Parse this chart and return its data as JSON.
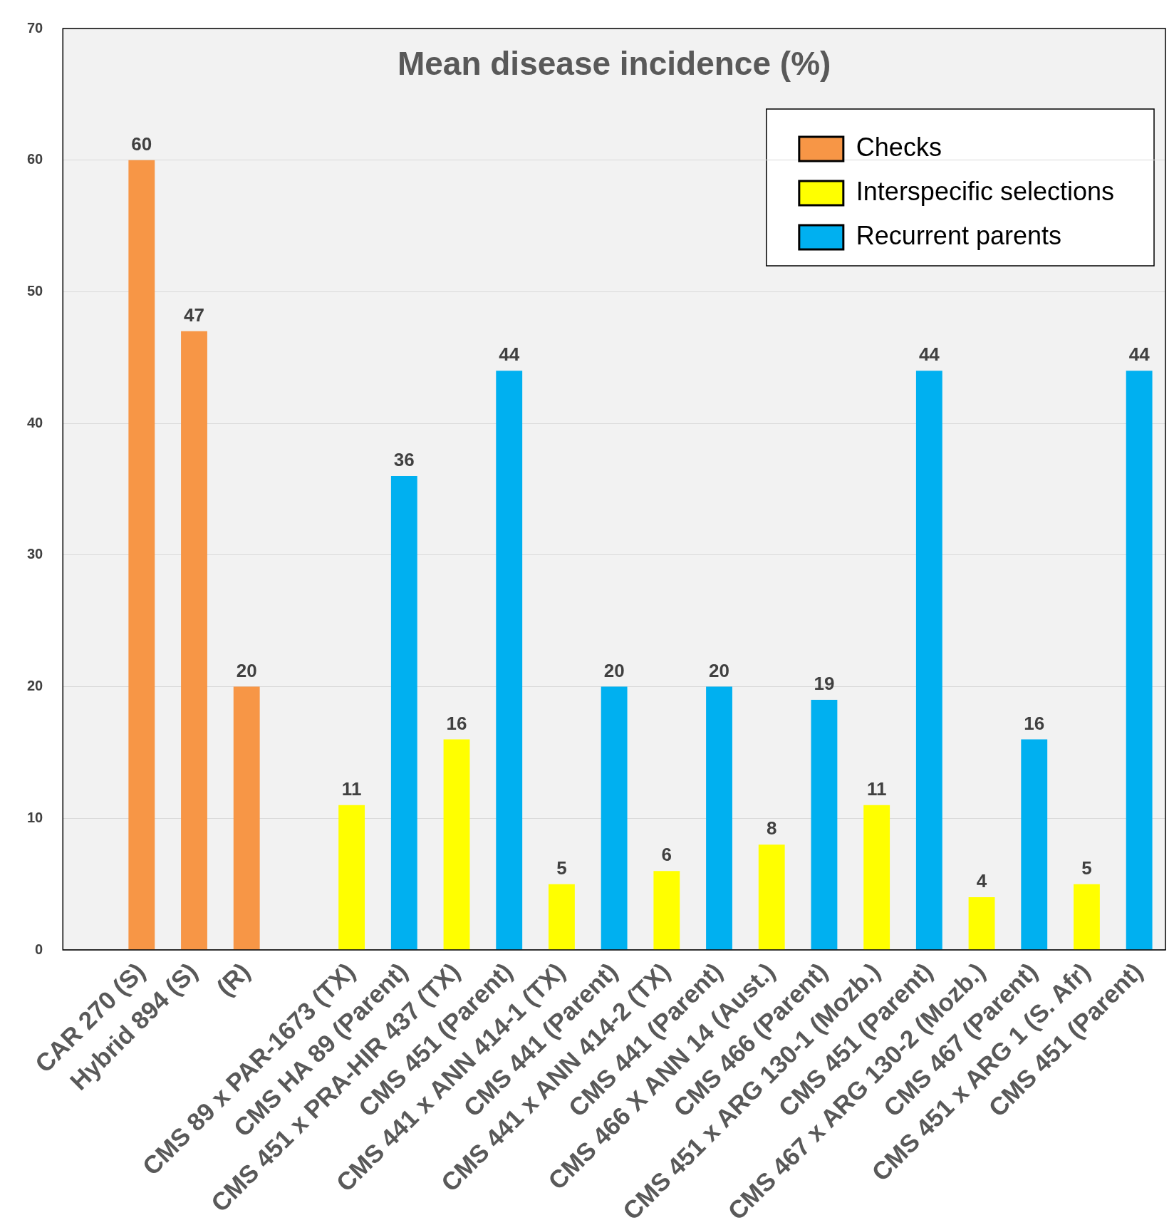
{
  "chart_data": {
    "type": "bar",
    "title": "Mean disease incidence (%)",
    "categories": [
      null,
      "CAR 270 (S)",
      "Hybrid 894 (S)",
      "(R)",
      null,
      "CMS 89 x PAR-1673 (TX)",
      "CMS HA 89 (Parent)",
      "CMS 451 x PRA-HIR 437 (TX)",
      "CMS 451 (Parent)",
      "CMS 441 x ANN 414-1 (TX)",
      "CMS 441 (Parent)",
      "CMS 441 x ANN 414-2 (TX)",
      "CMS 441 (Parent)",
      "CMS 466 X ANN 14 (Aust.)",
      "CMS 466 (Parent)",
      "CMS 451 x ARG 130-1 (Mozb.)",
      "CMS 451 (Parent)",
      "CMS 467 x ARG 130-2 (Mozb.)",
      "CMS 467 (Parent)",
      "CMS 451 x ARG 1 (S. Afr)",
      "CMS 451 (Parent)"
    ],
    "series": [
      {
        "name": "Checks",
        "color": "#f79646",
        "values": [
          null,
          60,
          47,
          20,
          null,
          null,
          null,
          null,
          null,
          null,
          null,
          null,
          null,
          null,
          null,
          null,
          null,
          null,
          null,
          null,
          null
        ]
      },
      {
        "name": "Interspecific selections",
        "color": "#ffff00",
        "values": [
          null,
          null,
          null,
          null,
          null,
          11,
          null,
          16,
          null,
          5,
          null,
          6,
          null,
          8,
          null,
          11,
          null,
          4,
          null,
          5,
          null
        ]
      },
      {
        "name": "Recurrent parents",
        "color": "#00b0f0",
        "values": [
          null,
          null,
          null,
          null,
          null,
          null,
          36,
          null,
          44,
          null,
          20,
          null,
          20,
          null,
          19,
          null,
          44,
          null,
          16,
          null,
          44
        ]
      }
    ],
    "ylim": [
      0,
      70
    ],
    "yticks": [
      0,
      10,
      20,
      30,
      40,
      50,
      60,
      70
    ],
    "grid": "y",
    "legend": "top right",
    "data_labels": true
  }
}
